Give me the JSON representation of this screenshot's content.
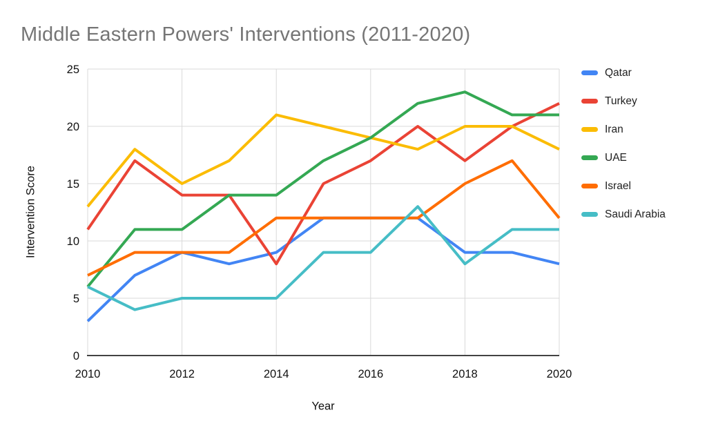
{
  "chart_data": {
    "type": "line",
    "title": "Middle Eastern Powers' Interventions (2011-2020)",
    "xlabel": "Year",
    "ylabel": "Intervention Score",
    "x": [
      2010,
      2011,
      2012,
      2013,
      2014,
      2015,
      2016,
      2017,
      2018,
      2019,
      2020
    ],
    "series": [
      {
        "name": "Qatar",
        "color": "#4285F4",
        "values": [
          3,
          7,
          9,
          8,
          9,
          12,
          12,
          12,
          9,
          9,
          8
        ]
      },
      {
        "name": "Turkey",
        "color": "#EA4335",
        "values": [
          11,
          17,
          14,
          14,
          8,
          15,
          17,
          20,
          17,
          20,
          22
        ]
      },
      {
        "name": "Iran",
        "color": "#FBBC04",
        "values": [
          13,
          18,
          15,
          17,
          21,
          20,
          19,
          18,
          20,
          20,
          18
        ]
      },
      {
        "name": "UAE",
        "color": "#34A853",
        "values": [
          6,
          11,
          11,
          14,
          14,
          17,
          19,
          22,
          23,
          21,
          21
        ]
      },
      {
        "name": "Israel",
        "color": "#FF6D01",
        "values": [
          7,
          9,
          9,
          9,
          12,
          12,
          12,
          12,
          15,
          17,
          12
        ]
      },
      {
        "name": "Saudi Arabia",
        "color": "#46BDC6",
        "values": [
          6,
          4,
          5,
          5,
          5,
          9,
          9,
          13,
          8,
          11,
          11
        ]
      }
    ],
    "xlim": [
      2010,
      2020
    ],
    "ylim": [
      0,
      25
    ],
    "xticks": [
      2010,
      2012,
      2014,
      2016,
      2018,
      2020
    ],
    "yticks": [
      0,
      5,
      10,
      15,
      20,
      25
    ],
    "grid": true,
    "legend_position": "right",
    "colors": {
      "grid": "#d9d9d9",
      "axis": "#424242",
      "tick_label": "#111111",
      "title": "#757575"
    }
  }
}
